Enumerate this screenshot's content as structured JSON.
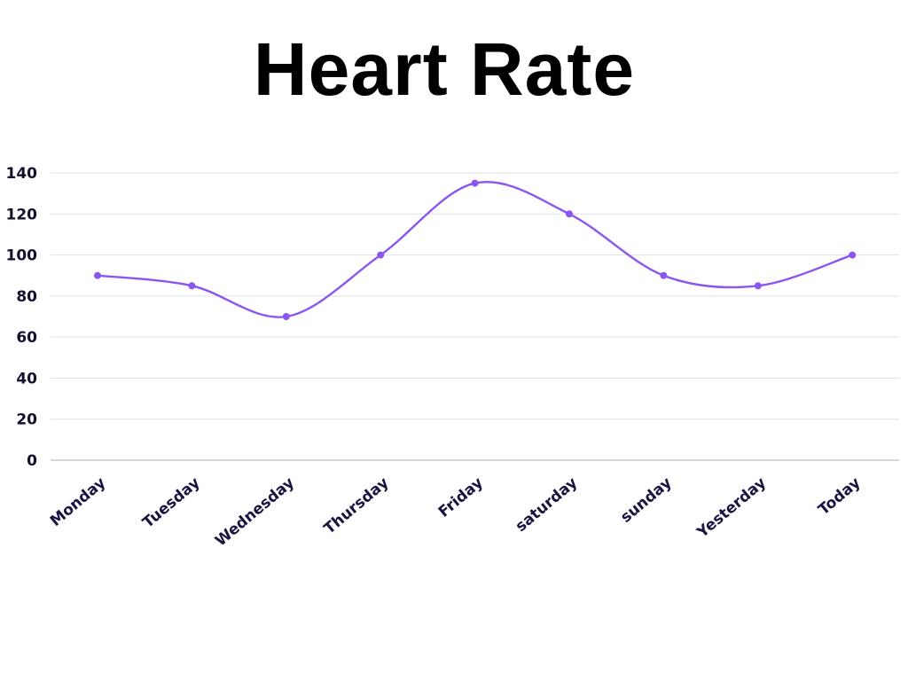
{
  "chart_data": {
    "type": "line",
    "title": "Heart Rate",
    "xlabel": "",
    "ylabel": "",
    "categories": [
      "Monday",
      "Tuesday",
      "Wednesday",
      "Thursday",
      "Friday",
      "saturday",
      "sunday",
      "Yesterday",
      "Today"
    ],
    "series": [
      {
        "values": [
          90,
          85,
          70,
          100,
          135,
          120,
          90,
          85,
          100
        ],
        "color": "#8b55f0"
      }
    ],
    "ylim": [
      0,
      140
    ],
    "yticks": [
      0,
      20,
      40,
      60,
      80,
      100,
      120,
      140
    ],
    "grid": true,
    "smooth": true,
    "legend": "none",
    "colors": {
      "gridline": "#e0e0e0",
      "axis": "#bdbdbd",
      "labels": "#14102e"
    }
  }
}
